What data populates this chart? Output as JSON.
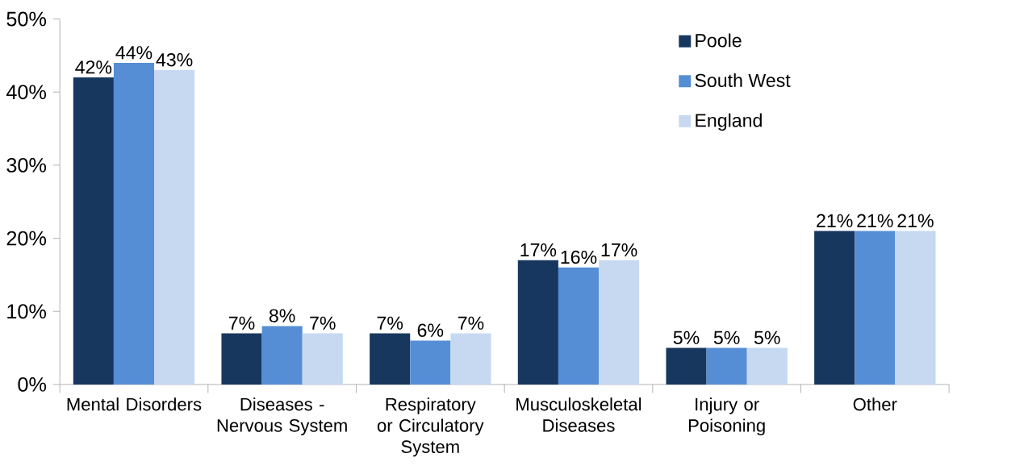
{
  "chart_data": {
    "type": "bar",
    "categories": [
      "Mental Disorders",
      "Diseases - Nervous System",
      "Respiratory or Circulatory System",
      "Musculoskeletal Diseases",
      "Injury or Poisoning",
      "Other"
    ],
    "series": [
      {
        "name": "Poole",
        "color": "#17375e",
        "values": [
          42,
          7,
          7,
          17,
          5,
          21
        ],
        "value_labels": [
          "42%",
          "7%",
          "7%",
          "17%",
          "5%",
          "21%"
        ]
      },
      {
        "name": "South West",
        "color": "#558ed5",
        "values": [
          44,
          8,
          6,
          16,
          5,
          21
        ],
        "value_labels": [
          "44%",
          "8%",
          "6%",
          "16%",
          "5%",
          "21%"
        ]
      },
      {
        "name": "England",
        "color": "#c6d9f1",
        "values": [
          43,
          7,
          7,
          17,
          5,
          21
        ],
        "value_labels": [
          "43%",
          "7%",
          "7%",
          "17%",
          "5%",
          "21%"
        ]
      }
    ],
    "ylim": [
      0,
      50
    ],
    "yticks": [
      {
        "value": 0,
        "label": "0%"
      },
      {
        "value": 10,
        "label": "10%"
      },
      {
        "value": 20,
        "label": "20%"
      },
      {
        "value": 30,
        "label": "30%"
      },
      {
        "value": 40,
        "label": "40%"
      },
      {
        "value": 50,
        "label": "50%"
      }
    ],
    "legend": "top right",
    "grid": false
  }
}
